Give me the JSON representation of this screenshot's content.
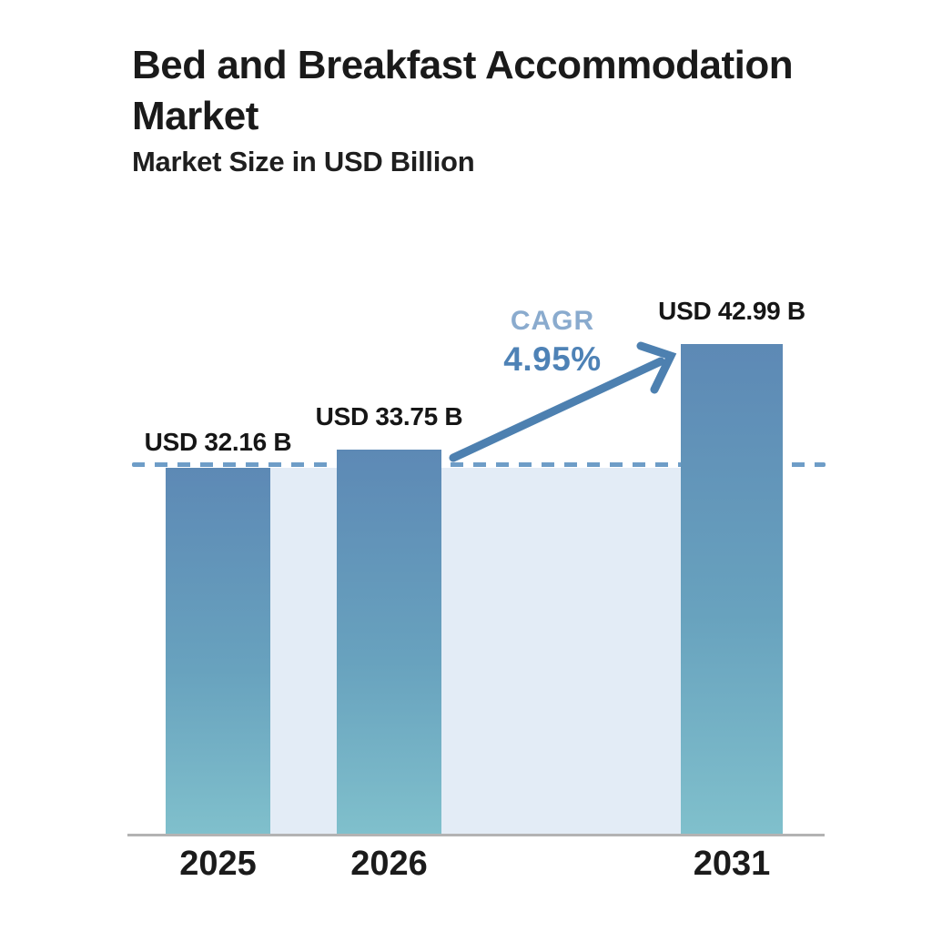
{
  "header": {
    "title": "Bed and Breakfast Accommodation Market",
    "subtitle": "Market Size in USD Billion"
  },
  "chart_data": {
    "type": "bar",
    "categories": [
      "2025",
      "2026",
      "2031"
    ],
    "values": [
      32.16,
      33.75,
      42.99
    ],
    "series": [
      {
        "name": "Market Size (USD Billion)",
        "values": [
          32.16,
          33.75,
          42.99
        ],
        "labels": [
          "USD 32.16 B",
          "USD 33.75 B",
          "USD 42.99 B"
        ]
      }
    ],
    "title": "Bed and Breakfast Accommodation Market",
    "subtitle": "Market Size in USD Billion",
    "xlabel": "",
    "ylabel": "Market Size in USD Billion",
    "ylim": [
      0,
      45
    ],
    "grid": false,
    "legend": false,
    "annotations": {
      "cagr_label": "CAGR",
      "cagr_value": "4.95%",
      "dashed_reference_level": 32.16,
      "arrow": "growth arrow from 2026 bar to 2031 bar"
    }
  },
  "colors": {
    "background": "#ffffff",
    "title_text": "#1a1a1a",
    "bar_gradient_top": "#5d89b5",
    "bar_gradient_mid": "#68a2be",
    "bar_gradient_bottom": "#80c0cc",
    "between_bar_shade": "#e3ecf6",
    "dashed_line": "#6e9dc7",
    "arrow": "#4d80b0",
    "cagr_label_text": "#8aabce",
    "cagr_value_text": "#4e82b6",
    "axis_line": "#b3b3b3",
    "value_label_text": "#161616"
  }
}
